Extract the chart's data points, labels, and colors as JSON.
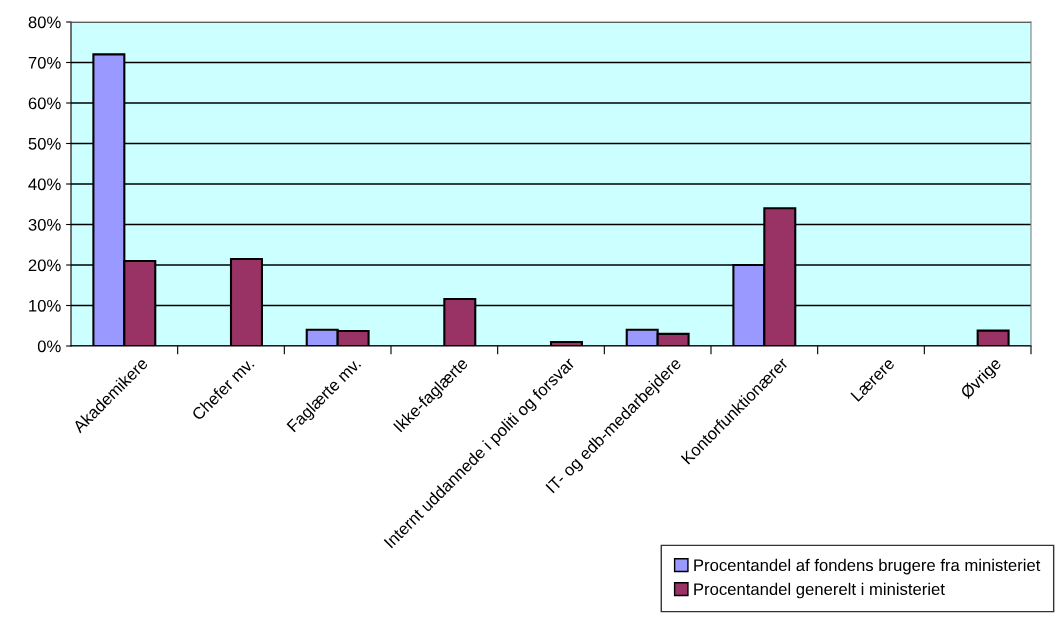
{
  "chart_data": {
    "type": "bar",
    "categories": [
      "Akademikere",
      "Chefer mv.",
      "Faglærte mv.",
      "Ikke-faglærte",
      "Internt uddannede i politi og forsvar",
      "IT- og edb-medarbejdere",
      "Kontorfunktionærer",
      "Lærere",
      "Øvrige"
    ],
    "series": [
      {
        "name": "Procentandel af fondens brugere fra ministeriet",
        "color": "#9999ff",
        "values": [
          72,
          0,
          4,
          0,
          0,
          4,
          20,
          0,
          0
        ]
      },
      {
        "name": "Procentandel generelt i ministeriet",
        "color": "#993366",
        "values": [
          21,
          21.5,
          3.7,
          11.6,
          1,
          3,
          34,
          0,
          3.8
        ]
      }
    ],
    "ylim": [
      0,
      80
    ],
    "yticks": [
      {
        "value": 0,
        "label": "0%"
      },
      {
        "value": 10,
        "label": "10%"
      },
      {
        "value": 20,
        "label": "20%"
      },
      {
        "value": 30,
        "label": "30%"
      },
      {
        "value": 40,
        "label": "40%"
      },
      {
        "value": 50,
        "label": "50%"
      },
      {
        "value": 60,
        "label": "60%"
      },
      {
        "value": 70,
        "label": "70%"
      },
      {
        "value": 80,
        "label": "80%"
      }
    ],
    "grid": "y",
    "legend": "bottom right"
  }
}
